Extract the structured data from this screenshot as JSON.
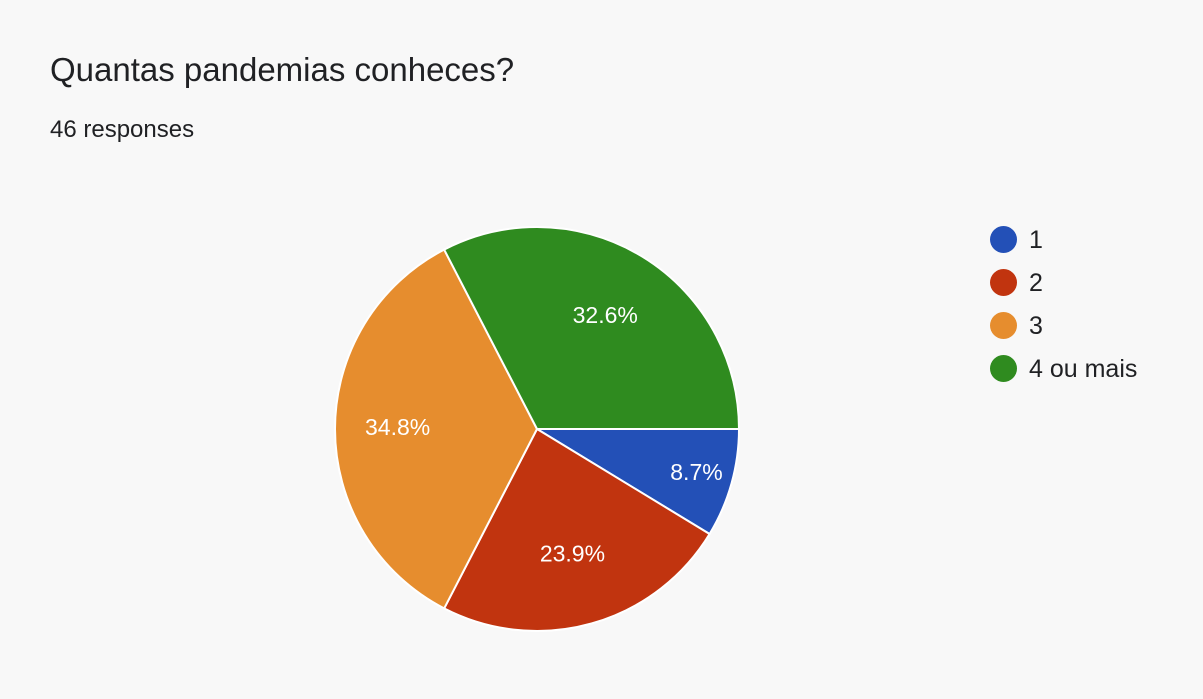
{
  "header": {
    "title": "Quantas pandemias conheces?",
    "responses": "46 responses"
  },
  "chart_data": {
    "type": "pie",
    "title": "Quantas pandemias conheces?",
    "categories": [
      "1",
      "2",
      "3",
      "4 ou mais"
    ],
    "values": [
      8.7,
      23.9,
      34.8,
      32.6
    ],
    "labels": [
      "8.7%",
      "23.9%",
      "34.8%",
      "32.6%"
    ],
    "colors": [
      "#2350b7",
      "#c1340f",
      "#e68d2e",
      "#2f8b1f"
    ],
    "legend_position": "right",
    "start_direction": "3 o'clock, clockwise"
  }
}
